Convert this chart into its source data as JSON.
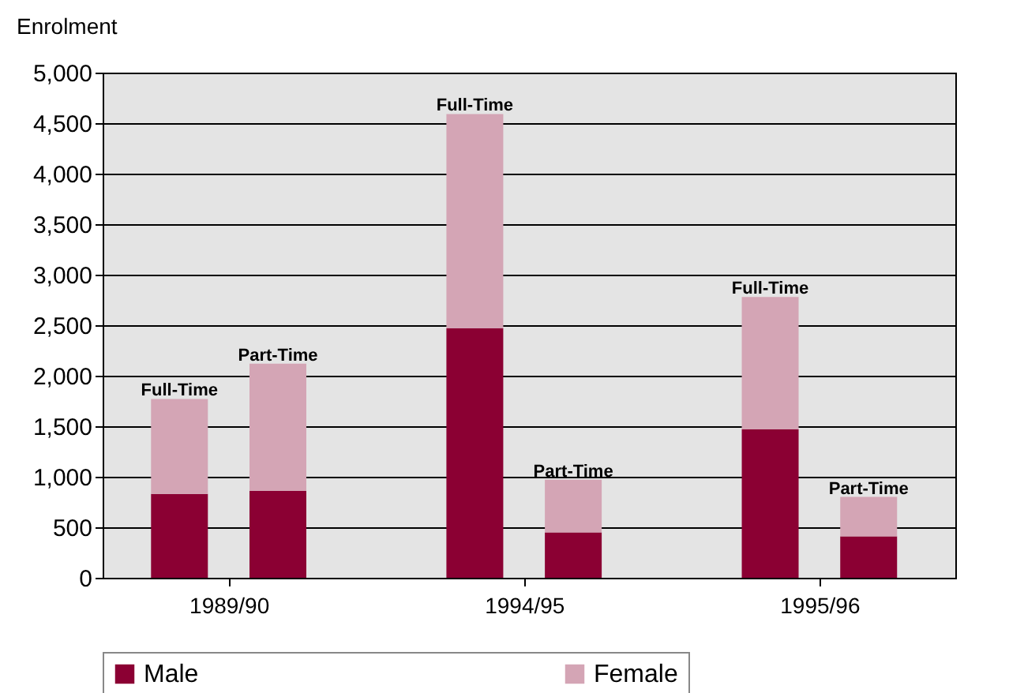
{
  "chart_data": {
    "type": "bar",
    "stacked": true,
    "ylabel": "Enrolment",
    "categories": [
      "Full-Time",
      "Part-Time",
      "Full-Time",
      "Part-Time",
      "Full-Time",
      "Part-Time"
    ],
    "series": [
      {
        "name": "Male",
        "color": "#8b0033",
        "values": [
          830,
          860,
          2470,
          450,
          1470,
          410
        ]
      },
      {
        "name": "Female",
        "color": "#d4a5b5",
        "values": [
          940,
          1260,
          2120,
          520,
          1310,
          390
        ]
      }
    ],
    "annotations": [
      "1989/90",
      "1994/95",
      "1995/96"
    ],
    "ylim": [
      0,
      5000
    ],
    "yticks": [
      0,
      500,
      {
        "value": 1000,
        "label": "1,000"
      },
      {
        "value": 1500,
        "label": "1,500"
      },
      {
        "value": 2000,
        "label": "2,000"
      },
      {
        "value": 2500,
        "label": "2,500"
      },
      {
        "value": 3000,
        "label": "3,000"
      },
      {
        "value": 3500,
        "label": "3,500"
      },
      {
        "value": 4000,
        "label": "4,000"
      },
      {
        "value": 4500,
        "label": "4,500"
      },
      {
        "value": 5000,
        "label": "5,000"
      }
    ],
    "grid": "y",
    "legend": "bottom"
  }
}
